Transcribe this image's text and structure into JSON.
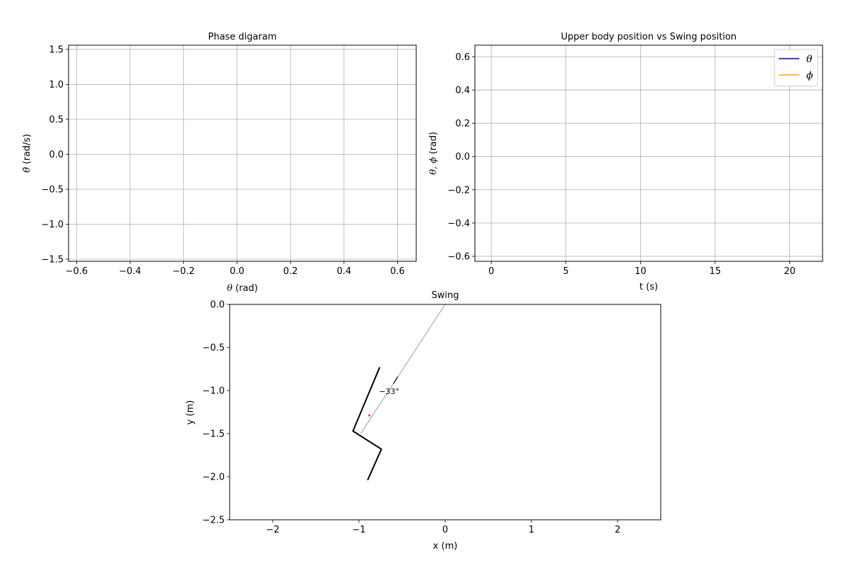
{
  "chart_data": [
    {
      "type": "line",
      "title": "Phase digaram",
      "xlabel_symbol": "θ",
      "xlabel_unit": " (rad)",
      "ylabel_symbol": "θ̇",
      "ylabel_unit": " (rad/s)",
      "xlim": [
        -0.63,
        0.67
      ],
      "ylim": [
        -1.53,
        1.56
      ],
      "xticks": [
        -0.6,
        -0.4,
        -0.2,
        0.0,
        0.2,
        0.4,
        0.6
      ],
      "xtick_labels": [
        "−0.6",
        "−0.4",
        "−0.2",
        "0.0",
        "0.2",
        "0.4",
        "0.6"
      ],
      "yticks": [
        -1.5,
        -1.0,
        -0.5,
        0.0,
        0.5,
        1.0,
        1.5
      ],
      "ytick_labels": [
        "−1.5",
        "−1.0",
        "−0.5",
        "0.0",
        "0.5",
        "1.0",
        "1.5"
      ],
      "grid": true,
      "series": []
    },
    {
      "type": "line",
      "title": "Upper body position vs Swing position",
      "xlabel": "t (s)",
      "ylabel_symbols": "θ, ϕ",
      "ylabel_unit": " (rad)",
      "xlim": [
        -1.1,
        22.2
      ],
      "ylim": [
        -0.63,
        0.67
      ],
      "xticks": [
        0,
        5,
        10,
        15,
        20
      ],
      "xtick_labels": [
        "0",
        "5",
        "10",
        "15",
        "20"
      ],
      "yticks": [
        -0.6,
        -0.4,
        -0.2,
        0.0,
        0.2,
        0.4,
        0.6
      ],
      "ytick_labels": [
        "−0.6",
        "−0.4",
        "−0.2",
        "0.0",
        "0.2",
        "0.4",
        "0.6"
      ],
      "grid": true,
      "legend_position": "top-right",
      "series": [
        {
          "name": "θ",
          "color": "#0000aa",
          "x": [],
          "y": []
        },
        {
          "name": "ϕ",
          "color": "#ffa500",
          "x": [],
          "y": []
        }
      ]
    },
    {
      "type": "line",
      "title": "Swing",
      "xlabel": "x (m)",
      "ylabel": "y (m)",
      "xlim": [
        -2.5,
        2.5
      ],
      "ylim": [
        -2.5,
        0.0
      ],
      "xticks": [
        -2,
        -1,
        0,
        1,
        2
      ],
      "xtick_labels": [
        "−2",
        "−1",
        "0",
        "1",
        "2"
      ],
      "yticks": [
        0.0,
        -0.5,
        -1.0,
        -1.5,
        -2.0,
        -2.5
      ],
      "ytick_labels": [
        "0.0",
        "−0.5",
        "−1.0",
        "−1.5",
        "−2.0",
        "−2.5"
      ],
      "grid": false,
      "rope": {
        "x": [
          0.0,
          -0.98
        ],
        "y": [
          0.0,
          -1.5
        ],
        "color": "#888888"
      },
      "body": {
        "x": [
          -0.76,
          -1.07,
          -0.74,
          -0.9
        ],
        "y": [
          -0.73,
          -1.47,
          -1.68,
          -2.04
        ],
        "color": "#000000"
      },
      "center_of_mass": {
        "x": -0.88,
        "y": -1.29,
        "color": "#ff0000"
      },
      "angle_label": {
        "text": "−33°",
        "x": -0.65,
        "y": -1.01
      },
      "angle_arc": {
        "x": [
          -0.55,
          -0.6
        ],
        "y": [
          -0.84,
          -0.92
        ]
      }
    }
  ]
}
